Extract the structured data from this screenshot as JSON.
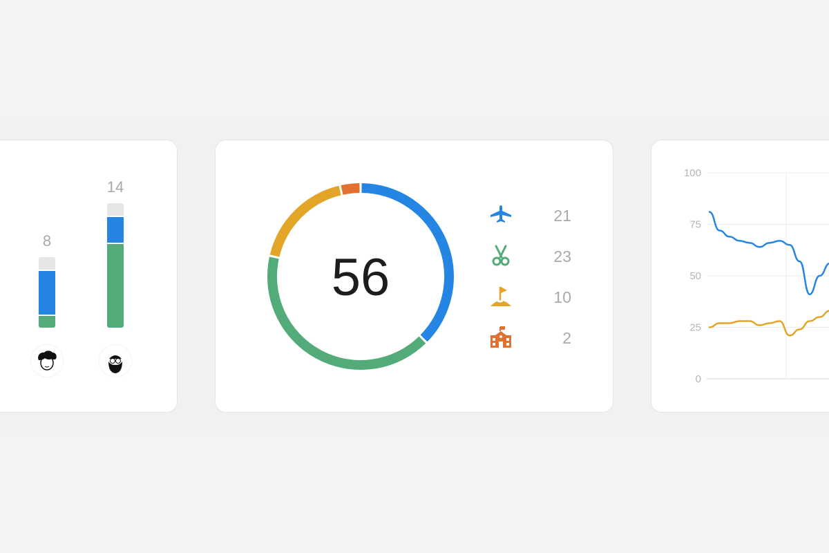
{
  "colors": {
    "blue": "#2585e3",
    "green": "#52ab78",
    "yellow": "#e2a528",
    "orange": "#e2712f",
    "gray": "#e6e6e6"
  },
  "bars": [
    {
      "total": "8",
      "avatar": "curly-hair-avatar",
      "segments": {
        "green": 1.5,
        "blue": 5,
        "gray": 1.5
      }
    },
    {
      "total": "14",
      "avatar": "bearded-glasses-avatar",
      "segments": {
        "green": 9.5,
        "blue": 3,
        "gray": 1.5
      }
    }
  ],
  "donut": {
    "total": "56",
    "items": [
      {
        "icon": "airplane-icon",
        "value": "21",
        "color": "#2585e3"
      },
      {
        "icon": "scissors-icon",
        "value": "23",
        "color": "#52ab78"
      },
      {
        "icon": "golf-flag-icon",
        "value": "10",
        "color": "#e2a528"
      },
      {
        "icon": "school-icon",
        "value": "2",
        "color": "#e2712f"
      }
    ]
  },
  "chart_data": {
    "type": "line",
    "yticks": [
      "100",
      "75",
      "50",
      "25",
      "0"
    ],
    "ylim": [
      0,
      100
    ],
    "grid": true,
    "series": [
      {
        "color": "#2585e3",
        "values": [
          81,
          72,
          69,
          67,
          66,
          64,
          66,
          67,
          65,
          57,
          41,
          50,
          56
        ]
      },
      {
        "color": "#e2a528",
        "values": [
          25,
          27,
          27,
          28,
          28,
          26,
          27,
          28,
          21,
          24,
          28,
          30,
          33
        ]
      }
    ]
  }
}
